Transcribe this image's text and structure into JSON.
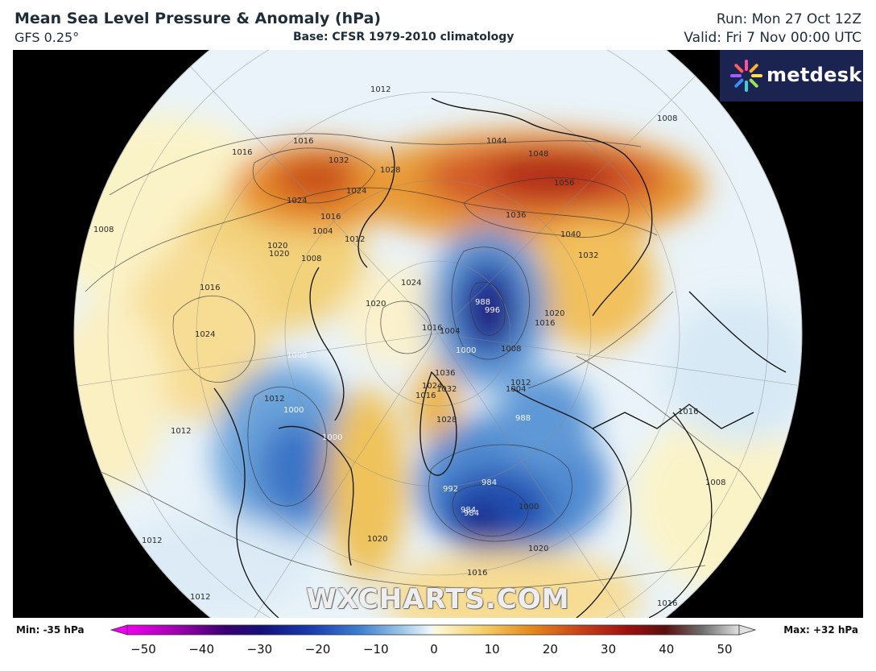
{
  "header": {
    "title": "Mean Sea Level Pressure & Anomaly (hPa)",
    "model": "GFS 0.25°",
    "base": "Base: CFSR 1979-2010 climatology",
    "run": "Run: Mon 27 Oct 12Z",
    "valid": "Valid: Fri 7 Nov 00:00 UTC"
  },
  "logo": {
    "text": "metdesk",
    "icon": "metdesk-flower-logo"
  },
  "watermark": "WXCHARTS.COM",
  "colorbar": {
    "min_label": "Min: -35 hPa",
    "max_label": "Max: +32 hPa",
    "ticks": [
      "−50",
      "−40",
      "−30",
      "−20",
      "−10",
      "0",
      "10",
      "20",
      "30",
      "40",
      "50"
    ],
    "range": [
      -50,
      50
    ],
    "colors": [
      "#f000f0",
      "#a000b0",
      "#3a0070",
      "#14107a",
      "#1a3cb0",
      "#3f7fd0",
      "#9ec8e8",
      "#eef6fb",
      "#fdf8d8",
      "#f5cf6a",
      "#e58a1c",
      "#c8421a",
      "#9b1010",
      "#5a1010",
      "#6e6e6e",
      "#e0e0e0"
    ]
  },
  "isobar_labels": [
    "1032",
    "1028",
    "1024",
    "1016",
    "1048",
    "1056",
    "1044",
    "1036",
    "1040",
    "1032",
    "1024",
    "1020",
    "1016",
    "1008",
    "1004",
    "1012",
    "1016",
    "1024",
    "1020",
    "1024",
    "1016",
    "1020",
    "1012",
    "1016",
    "1004",
    "1000",
    "1008",
    "1012",
    "1016",
    "1020",
    "1024",
    "1036",
    "1032",
    "1028",
    "1016",
    "1012",
    "1008",
    "1000",
    "1000",
    "1004",
    "988",
    "984",
    "984",
    "992",
    "1000",
    "1020",
    "1016",
    "1012",
    "1020",
    "1016",
    "1008",
    "1012",
    "1016",
    "1008",
    "1008",
    "1012"
  ],
  "centers": [
    "988",
    "996",
    "984"
  ]
}
